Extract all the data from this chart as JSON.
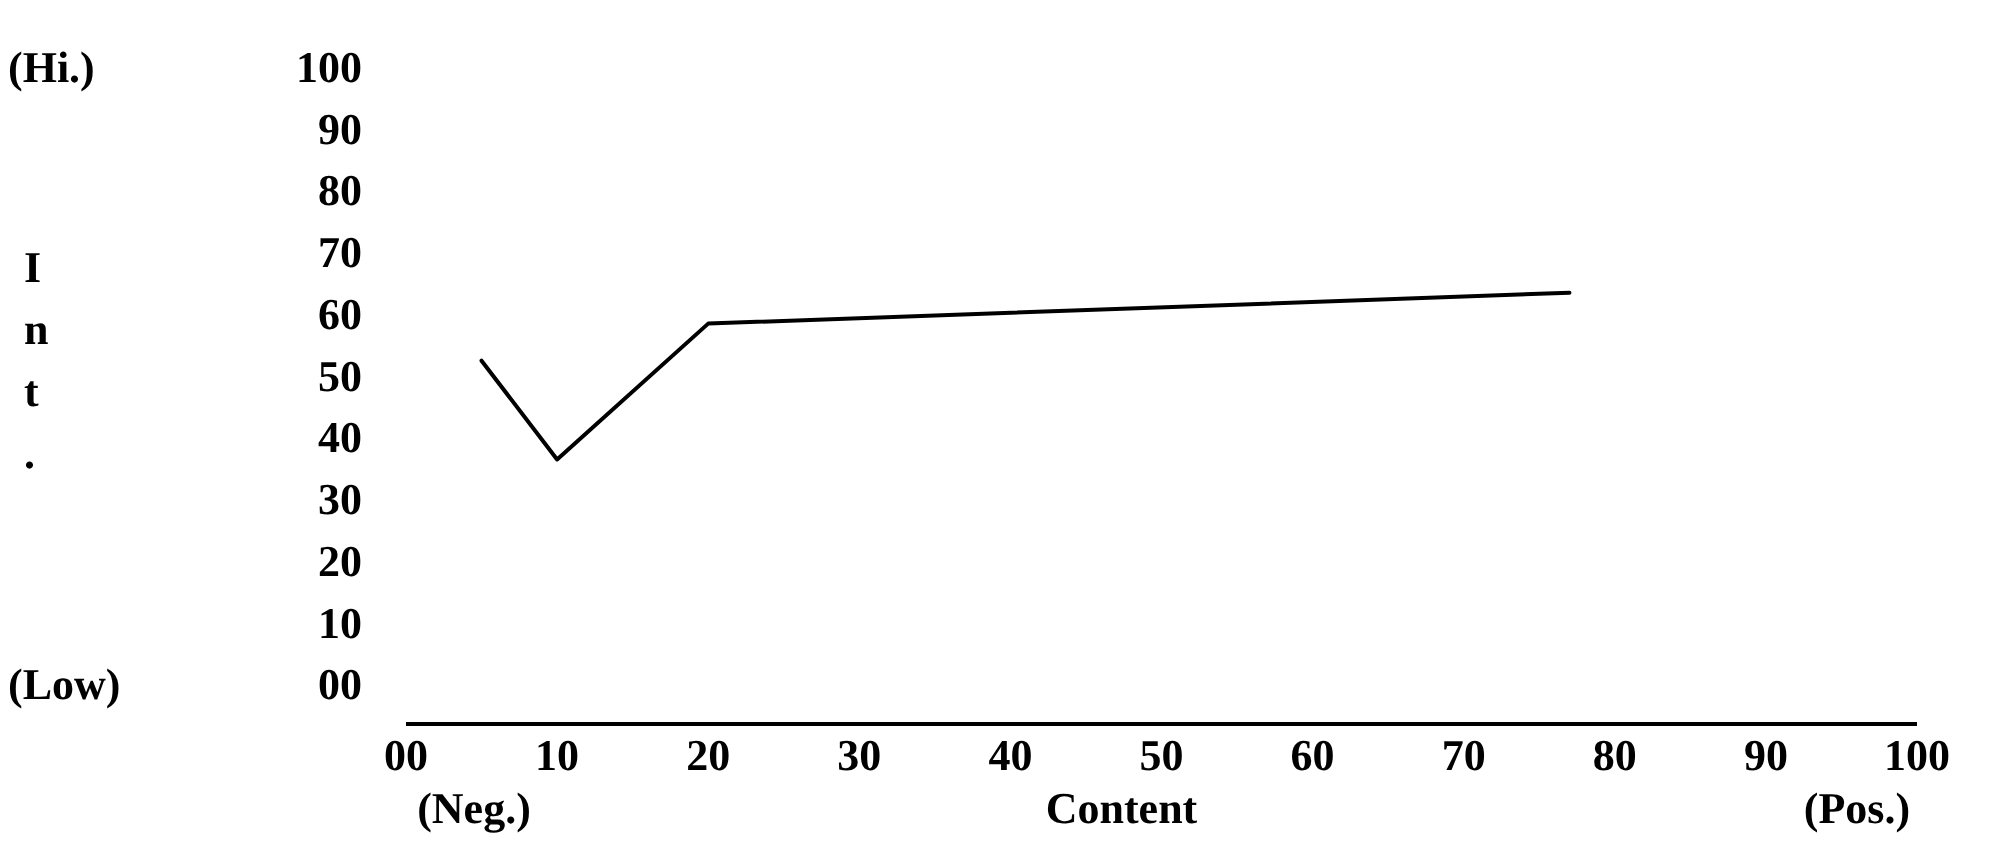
{
  "chart_data": {
    "type": "line",
    "xlabel": "Content",
    "annotations": [
      "(Hi.)",
      "(Low)",
      "(Neg.)",
      "(Pos.)",
      "Int."
    ],
    "x": [
      5,
      10,
      20,
      77
    ],
    "series": [
      {
        "color": "#000000",
        "values": [
          53,
          37,
          59,
          64
        ]
      }
    ],
    "xlim": [
      0,
      100
    ],
    "xticks": [
      {
        "value": 0,
        "label": "00"
      },
      10,
      20,
      30,
      40,
      50,
      60,
      70,
      80,
      90,
      100
    ],
    "ylim": [
      0,
      100
    ],
    "yticks": [
      {
        "value": 0,
        "label": "00"
      },
      10,
      20,
      30,
      40,
      50,
      60,
      70,
      80,
      90,
      100
    ],
    "grid": false,
    "legend": false,
    "marker": "none",
    "line_style": "solid"
  }
}
